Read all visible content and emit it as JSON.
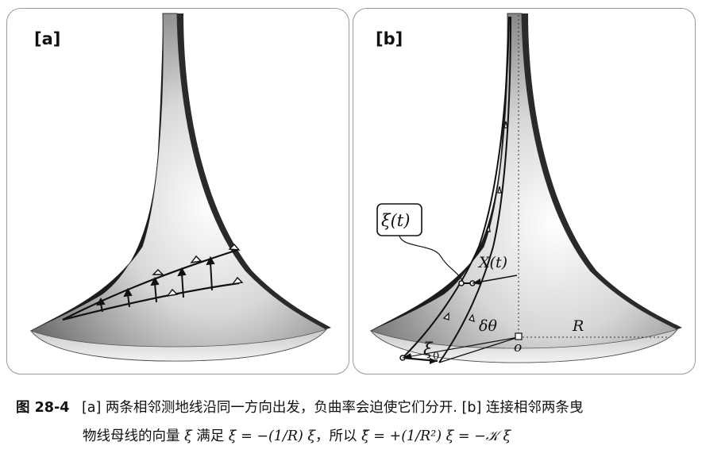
{
  "panel_a": {
    "label": "[a]"
  },
  "panel_b": {
    "label": "[b]",
    "xi_t": "ξ(t)",
    "X_t": "X(t)",
    "xi_0": "ξ",
    "xi_0_sub": "0",
    "delta_theta": "δθ",
    "origin": "o",
    "radius": "R"
  },
  "caption": {
    "fig": "图 28-4",
    "line1": "[a] 两条相邻测地线沿同一方向出发，负曲率会迫使它们分开. [b] 连接相邻两条曳",
    "line2_pre": "物线母线的向量",
    "xi": "ξ",
    "line2_mid1": "满足",
    "eq1": "ξ̇ = −(1/R) ξ",
    "line2_mid2": "，所以",
    "eq2": "ξ̈ = +(1/R²) ξ = −𝒦 ξ"
  }
}
